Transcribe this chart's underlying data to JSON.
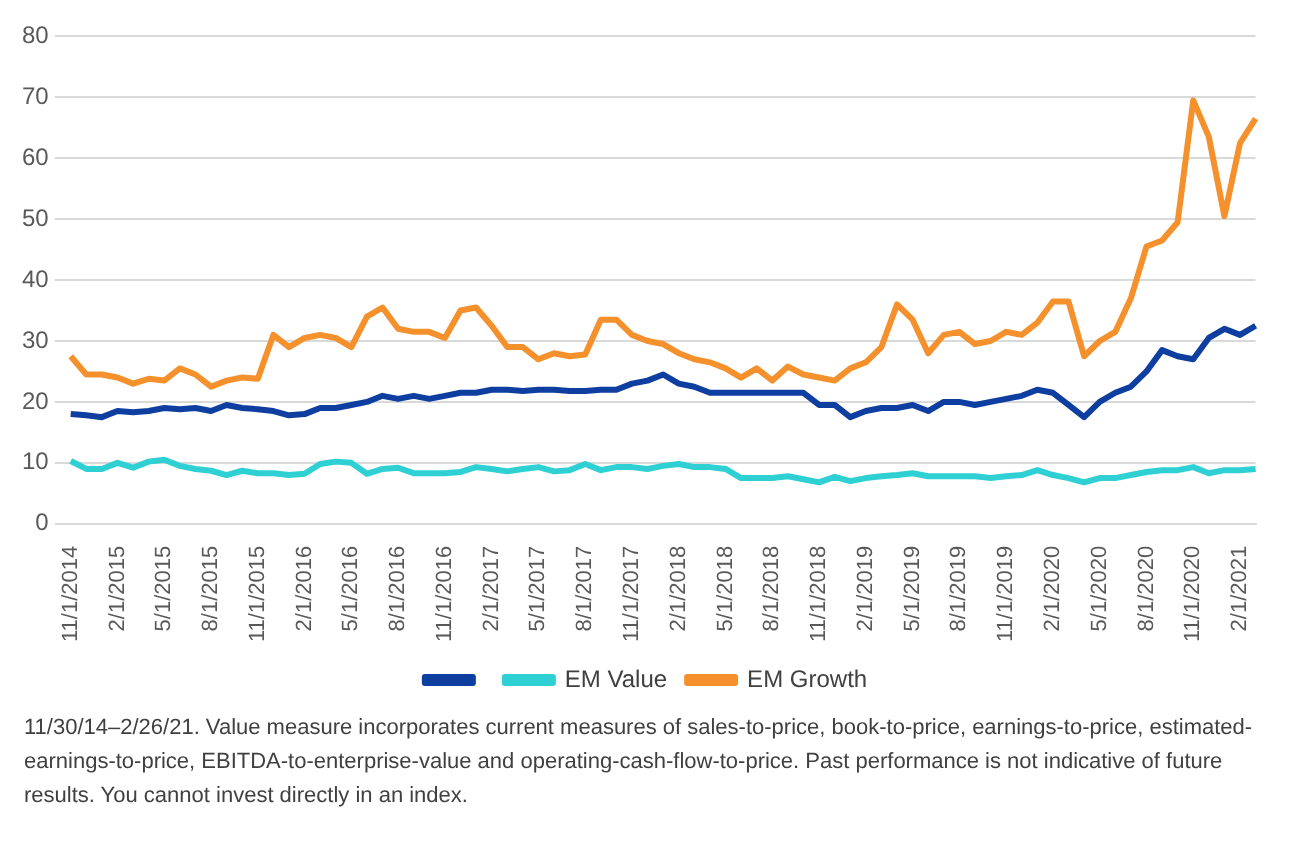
{
  "chart_data": {
    "type": "line",
    "categories": [
      "11/1/2014",
      null,
      null,
      "2/1/2015",
      null,
      null,
      "5/1/2015",
      null,
      null,
      "8/1/2015",
      null,
      null,
      "11/1/2015",
      null,
      null,
      "2/1/2016",
      null,
      null,
      "5/1/2016",
      null,
      null,
      "8/1/2016",
      null,
      null,
      "11/1/2016",
      null,
      null,
      "2/1/2017",
      null,
      null,
      "5/1/2017",
      null,
      null,
      "8/1/2017",
      null,
      null,
      "11/1/2017",
      null,
      null,
      "2/1/2018",
      null,
      null,
      "5/1/2018",
      null,
      null,
      "8/1/2018",
      null,
      null,
      "11/1/2018",
      null,
      null,
      "2/1/2019",
      null,
      null,
      "5/1/2019",
      null,
      null,
      "8/1/2019",
      null,
      null,
      "11/1/2019",
      null,
      null,
      "2/1/2020",
      null,
      null,
      "5/1/2020",
      null,
      null,
      "8/1/2020",
      null,
      null,
      "11/1/2020",
      null,
      null,
      "2/1/2021",
      null
    ],
    "series": [
      {
        "color": "#0e3fa0",
        "values": [
          18,
          17.8,
          17.5,
          18.5,
          18.3,
          18.5,
          19,
          18.8,
          19,
          18.5,
          19.5,
          19,
          18.8,
          18.5,
          17.8,
          18,
          19,
          19,
          19.5,
          20,
          21,
          20.5,
          21,
          20.5,
          21,
          21.5,
          21.5,
          22,
          22,
          21.8,
          22,
          22,
          21.8,
          21.8,
          22,
          22,
          23,
          23.5,
          24.5,
          23,
          22.5,
          21.5,
          21.5,
          21.5,
          21.5,
          21.5,
          21.5,
          21.5,
          19.5,
          19.5,
          17.5,
          18.5,
          19,
          19,
          19.5,
          18.5,
          20,
          20,
          19.5,
          20,
          20.5,
          21,
          22,
          21.5,
          19.5,
          17.5,
          20,
          21.5,
          22.5,
          25,
          28.5,
          27.5,
          27,
          30.5,
          32,
          31,
          32.5
        ]
      },
      {
        "name": "EM Value",
        "color": "#2fd0d3",
        "values": [
          10.3,
          9,
          9,
          10,
          9.2,
          10.2,
          10.5,
          9.5,
          9,
          8.7,
          8,
          8.7,
          8.3,
          8.3,
          8,
          8.2,
          9.8,
          10.2,
          10,
          8.2,
          9,
          9.2,
          8.3,
          8.3,
          8.3,
          8.5,
          9.3,
          9,
          8.6,
          9,
          9.3,
          8.6,
          8.8,
          9.8,
          8.8,
          9.3,
          9.3,
          9,
          9.5,
          9.8,
          9.3,
          9.3,
          9,
          7.5,
          7.5,
          7.5,
          7.8,
          7.3,
          6.8,
          7.7,
          7,
          7.5,
          7.8,
          8,
          8.3,
          7.8,
          7.8,
          7.8,
          7.8,
          7.5,
          7.8,
          8,
          8.8,
          8,
          7.5,
          6.8,
          7.5,
          7.5,
          8,
          8.5,
          8.8,
          8.8,
          9.3,
          8.3,
          8.8,
          8.8,
          9
        ]
      },
      {
        "name": "EM Growth",
        "color": "#f5912c",
        "values": [
          27.5,
          24.5,
          24.5,
          24,
          23,
          23.8,
          23.5,
          25.5,
          24.5,
          22.5,
          23.5,
          24,
          23.8,
          31,
          29,
          30.5,
          31,
          30.5,
          29,
          34,
          35.5,
          32,
          31.5,
          31.5,
          30.5,
          35,
          35.5,
          32.5,
          29,
          29,
          27,
          28,
          27.5,
          27.8,
          33.5,
          33.5,
          31,
          30,
          29.5,
          28,
          27,
          26.5,
          25.5,
          24,
          25.5,
          23.5,
          25.8,
          24.5,
          24,
          23.5,
          25.5,
          26.5,
          29,
          36,
          33.5,
          28,
          31,
          31.5,
          29.5,
          30,
          31.5,
          31,
          33,
          36.5,
          36.5,
          27.5,
          30,
          31.5,
          37,
          45.5,
          46.5,
          49.5,
          69.5,
          63.5,
          50.5,
          62.5,
          66.5
        ]
      }
    ],
    "ylim": [
      0,
      80
    ],
    "yticks": [
      0,
      10,
      20,
      30,
      40,
      50,
      60,
      70,
      80
    ],
    "grid": "y",
    "legend": "bottom",
    "annotations": [
      "11/30/14–2/26/21. Value measure incorporates current measures of sales-to-price, book-to-price, earnings-to-price, estimated-earnings-to-price, EBITDA-to-enterprise-value and operating-cash-flow-to-price. Past performance is not indicative of future results. You cannot invest directly in an index."
    ]
  }
}
